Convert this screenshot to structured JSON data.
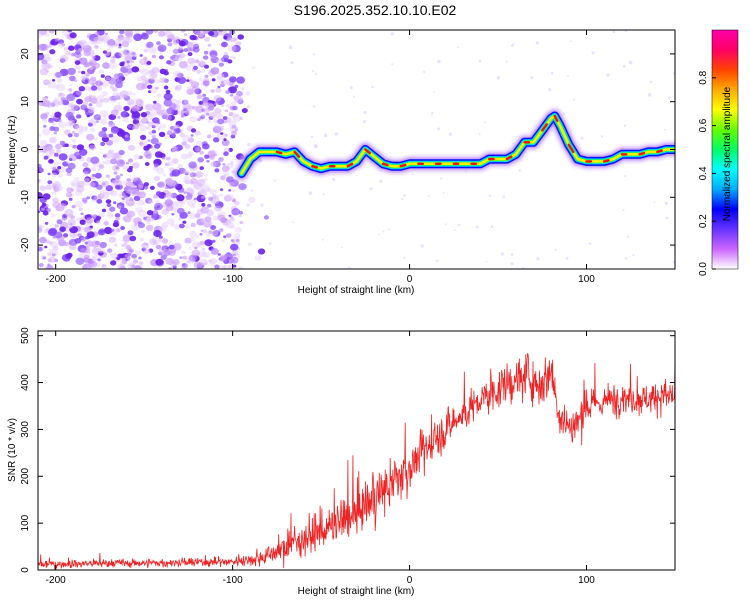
{
  "title": "S196.2025.352.10.10.E02",
  "colors": {
    "snr_line": "#ee2222",
    "axis": "#000000",
    "background": "#ffffff"
  },
  "chart_data": [
    {
      "type": "heatmap",
      "name": "spectrogram",
      "xlabel": "Height of straight line (km)",
      "ylabel": "Frequency (Hz)",
      "xlim": [
        -210,
        150
      ],
      "ylim": [
        -25,
        25
      ],
      "xticks": [
        -200,
        -100,
        0,
        100
      ],
      "yticks": [
        -20,
        -10,
        0,
        10,
        20
      ],
      "grid": false,
      "noise_region_x": [
        -210,
        -95
      ],
      "ridge": {
        "x": [
          -95,
          -90,
          -85,
          -80,
          -75,
          -70,
          -65,
          -60,
          -55,
          -50,
          -45,
          -40,
          -35,
          -30,
          -25,
          -20,
          -15,
          -10,
          -5,
          0,
          5,
          10,
          15,
          20,
          25,
          30,
          35,
          40,
          45,
          50,
          55,
          60,
          65,
          70,
          75,
          80,
          82,
          85,
          90,
          95,
          100,
          105,
          110,
          115,
          120,
          125,
          130,
          135,
          140,
          145,
          150
        ],
        "freq": [
          -5,
          -2,
          -0.5,
          -0.5,
          -0.5,
          -1,
          -0.5,
          -2.5,
          -3.5,
          -4,
          -3.5,
          -3.5,
          -3.5,
          -2.5,
          0,
          -1.5,
          -3,
          -3.5,
          -3.5,
          -3,
          -3,
          -3,
          -3,
          -3,
          -3,
          -3,
          -3,
          -3,
          -2,
          -2,
          -2,
          -1,
          1.5,
          1.5,
          4,
          6.5,
          7,
          5,
          1,
          -2,
          -2.5,
          -2.5,
          -2.5,
          -2,
          -1,
          -1,
          -1,
          -0.5,
          -0.5,
          0,
          0
        ]
      },
      "colorbar": {
        "label": "Normalized spectral amplitude",
        "ticks": [
          "0.0",
          "0.2",
          "0.4",
          "0.6",
          "0.8"
        ],
        "range": [
          0,
          1
        ],
        "colors": [
          "#ffffff",
          "#cc66ff",
          "#6633ff",
          "#0000ff",
          "#00aaff",
          "#00ffff",
          "#00ff66",
          "#66ff00",
          "#ffff00",
          "#ffaa00",
          "#ff4400",
          "#ff0066",
          "#ff00aa"
        ]
      }
    },
    {
      "type": "line",
      "name": "snr",
      "xlabel": "Height of straight line (km)",
      "ylabel": "SNR (10 * v/v)",
      "xlim": [
        -210,
        150
      ],
      "ylim": [
        0,
        510
      ],
      "xticks": [
        -200,
        -100,
        0,
        100
      ],
      "yticks": [
        0,
        100,
        200,
        300,
        400,
        500
      ],
      "grid": false,
      "series": [
        {
          "name": "SNR",
          "x": [
            -210,
            -180,
            -150,
            -120,
            -100,
            -85,
            -75,
            -65,
            -55,
            -45,
            -35,
            -25,
            -15,
            -5,
            5,
            15,
            25,
            35,
            45,
            55,
            62,
            68,
            72,
            76,
            80,
            85,
            92,
            100,
            110,
            120,
            130,
            140,
            150
          ],
          "mean": [
            12,
            14,
            15,
            16,
            18,
            25,
            40,
            60,
            75,
            90,
            110,
            140,
            165,
            200,
            240,
            280,
            315,
            345,
            375,
            395,
            410,
            415,
            400,
            400,
            430,
            330,
            300,
            345,
            360,
            370,
            365,
            370,
            375
          ],
          "envelope": [
            15,
            15,
            15,
            15,
            15,
            25,
            40,
            55,
            60,
            70,
            80,
            80,
            80,
            80,
            70,
            65,
            60,
            60,
            60,
            70,
            75,
            80,
            80,
            75,
            85,
            75,
            70,
            60,
            55,
            55,
            55,
            55,
            55
          ]
        }
      ]
    }
  ]
}
